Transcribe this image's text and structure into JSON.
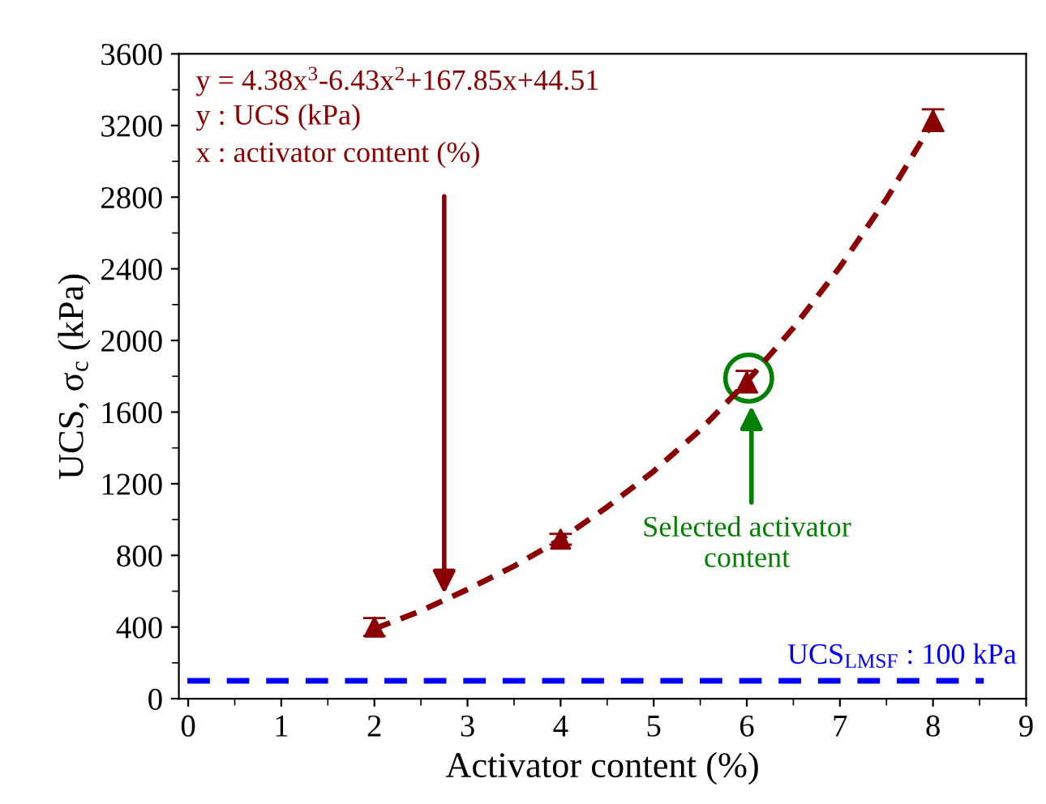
{
  "chart_data": {
    "type": "scatter",
    "xlabel": "Activator content (%)",
    "ylabel": "UCS, σ$_{c}$ (kPa)",
    "xlim": [
      -0.1,
      9
    ],
    "xticks": [
      0,
      1,
      2,
      3,
      4,
      5,
      6,
      7,
      8,
      9
    ],
    "ylim": [
      0,
      3600
    ],
    "yticks": [
      0,
      400,
      800,
      1200,
      1600,
      2000,
      2400,
      2800,
      3200,
      3600
    ],
    "grid": false,
    "series": [
      {
        "color": "#8b0000",
        "marker": "triangle",
        "x": [
          2,
          4,
          6,
          8
        ],
        "values": [
          400,
          890,
          1770,
          3230
        ],
        "errors": [
          50,
          30,
          60,
          60
        ]
      },
      {
        "type": "line",
        "color": "#8b0000",
        "line_style": "dashed",
        "marker": "none",
        "x": [
          2,
          2.5,
          3,
          3.5,
          4,
          4.5,
          5,
          5.5,
          6,
          6.5,
          7,
          7.5,
          8
        ],
        "values": [
          390,
          490,
          610,
          740,
          890,
          1070,
          1270,
          1500,
          1770,
          2070,
          2410,
          2790,
          3220
        ]
      }
    ],
    "ref_lines": [
      {
        "axis": "y",
        "value": 100,
        "label": "UCS$_{LMSF}$ : 100 kPa",
        "color": "#0000ff",
        "line_style": "dashed"
      }
    ],
    "annotations": [
      "y = 4.38x$^{3}$-6.43x$^{2}$+167.85x+44.51",
      "y : UCS (kPa)",
      "x : activator content (%)",
      "Selected activator\ncontent"
    ]
  }
}
